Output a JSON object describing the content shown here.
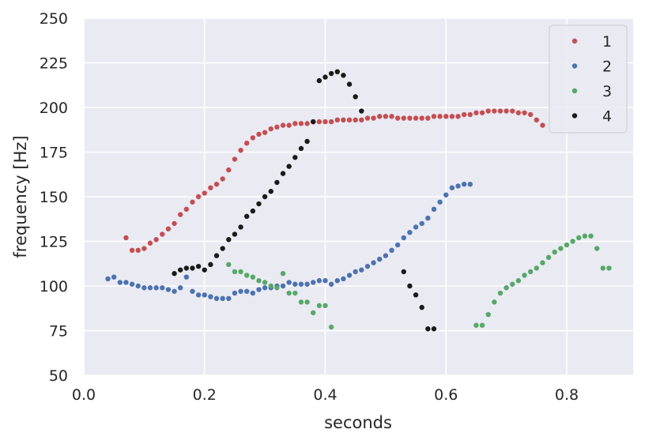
{
  "chart_data": {
    "type": "scatter",
    "xlabel": "seconds",
    "ylabel": "frequency [Hz]",
    "xlim": [
      0.0,
      0.91
    ],
    "ylim": [
      50,
      250
    ],
    "xticks": [
      "0.0",
      "0.2",
      "0.4",
      "0.6",
      "0.8"
    ],
    "yticks": [
      "50",
      "75",
      "100",
      "125",
      "150",
      "175",
      "200",
      "225",
      "250"
    ],
    "grid": true,
    "legend_position": "top-right",
    "series": [
      {
        "name": "1",
        "color": "#c44e52",
        "points": [
          [
            0.07,
            127
          ],
          [
            0.08,
            120
          ],
          [
            0.09,
            120
          ],
          [
            0.1,
            121
          ],
          [
            0.11,
            124
          ],
          [
            0.12,
            126
          ],
          [
            0.13,
            129
          ],
          [
            0.14,
            132
          ],
          [
            0.15,
            135
          ],
          [
            0.16,
            140
          ],
          [
            0.17,
            143
          ],
          [
            0.18,
            147
          ],
          [
            0.19,
            150
          ],
          [
            0.2,
            152
          ],
          [
            0.21,
            155
          ],
          [
            0.22,
            157
          ],
          [
            0.23,
            160
          ],
          [
            0.24,
            165
          ],
          [
            0.25,
            171
          ],
          [
            0.26,
            176
          ],
          [
            0.27,
            180
          ],
          [
            0.28,
            183
          ],
          [
            0.29,
            185
          ],
          [
            0.3,
            186
          ],
          [
            0.31,
            188
          ],
          [
            0.32,
            189
          ],
          [
            0.33,
            190
          ],
          [
            0.34,
            190
          ],
          [
            0.35,
            191
          ],
          [
            0.36,
            191
          ],
          [
            0.37,
            191
          ],
          [
            0.38,
            192
          ],
          [
            0.39,
            192
          ],
          [
            0.4,
            192
          ],
          [
            0.41,
            192
          ],
          [
            0.42,
            193
          ],
          [
            0.43,
            193
          ],
          [
            0.44,
            193
          ],
          [
            0.45,
            193
          ],
          [
            0.46,
            193
          ],
          [
            0.47,
            194
          ],
          [
            0.48,
            194
          ],
          [
            0.49,
            195
          ],
          [
            0.5,
            195
          ],
          [
            0.51,
            195
          ],
          [
            0.52,
            194
          ],
          [
            0.53,
            194
          ],
          [
            0.54,
            194
          ],
          [
            0.55,
            194
          ],
          [
            0.56,
            194
          ],
          [
            0.57,
            194
          ],
          [
            0.58,
            195
          ],
          [
            0.59,
            195
          ],
          [
            0.6,
            195
          ],
          [
            0.61,
            195
          ],
          [
            0.62,
            195
          ],
          [
            0.63,
            196
          ],
          [
            0.64,
            196
          ],
          [
            0.65,
            197
          ],
          [
            0.66,
            197
          ],
          [
            0.67,
            198
          ],
          [
            0.68,
            198
          ],
          [
            0.69,
            198
          ],
          [
            0.7,
            198
          ],
          [
            0.71,
            198
          ],
          [
            0.72,
            197
          ],
          [
            0.73,
            197
          ],
          [
            0.74,
            196
          ],
          [
            0.75,
            193
          ],
          [
            0.76,
            190
          ]
        ]
      },
      {
        "name": "2",
        "color": "#4c72b0",
        "points": [
          [
            0.04,
            104
          ],
          [
            0.05,
            105
          ],
          [
            0.06,
            102
          ],
          [
            0.07,
            102
          ],
          [
            0.08,
            101
          ],
          [
            0.09,
            100
          ],
          [
            0.1,
            99
          ],
          [
            0.11,
            99
          ],
          [
            0.12,
            99
          ],
          [
            0.13,
            99
          ],
          [
            0.14,
            98
          ],
          [
            0.15,
            97
          ],
          [
            0.16,
            99
          ],
          [
            0.17,
            105
          ],
          [
            0.18,
            97
          ],
          [
            0.19,
            95
          ],
          [
            0.2,
            95
          ],
          [
            0.21,
            94
          ],
          [
            0.22,
            93
          ],
          [
            0.23,
            93
          ],
          [
            0.24,
            93
          ],
          [
            0.25,
            96
          ],
          [
            0.26,
            97
          ],
          [
            0.27,
            97
          ],
          [
            0.28,
            96
          ],
          [
            0.29,
            98
          ],
          [
            0.3,
            99
          ],
          [
            0.31,
            99
          ],
          [
            0.32,
            100
          ],
          [
            0.33,
            100
          ],
          [
            0.34,
            102
          ],
          [
            0.35,
            101
          ],
          [
            0.36,
            101
          ],
          [
            0.37,
            101
          ],
          [
            0.38,
            102
          ],
          [
            0.39,
            103
          ],
          [
            0.4,
            103
          ],
          [
            0.41,
            101
          ],
          [
            0.42,
            103
          ],
          [
            0.43,
            104
          ],
          [
            0.44,
            106
          ],
          [
            0.45,
            108
          ],
          [
            0.46,
            109
          ],
          [
            0.47,
            111
          ],
          [
            0.48,
            113
          ],
          [
            0.49,
            115
          ],
          [
            0.5,
            117
          ],
          [
            0.51,
            120
          ],
          [
            0.52,
            123
          ],
          [
            0.53,
            127
          ],
          [
            0.54,
            130
          ],
          [
            0.55,
            133
          ],
          [
            0.56,
            135
          ],
          [
            0.57,
            138
          ],
          [
            0.58,
            143
          ],
          [
            0.59,
            147
          ],
          [
            0.6,
            151
          ],
          [
            0.61,
            155
          ],
          [
            0.62,
            156
          ],
          [
            0.63,
            157
          ],
          [
            0.64,
            157
          ]
        ]
      },
      {
        "name": "3",
        "color": "#55a868",
        "points": [
          [
            0.24,
            112
          ],
          [
            0.25,
            108
          ],
          [
            0.26,
            108
          ],
          [
            0.27,
            106
          ],
          [
            0.28,
            105
          ],
          [
            0.29,
            103
          ],
          [
            0.3,
            102
          ],
          [
            0.31,
            100
          ],
          [
            0.32,
            99
          ],
          [
            0.33,
            107
          ],
          [
            0.34,
            96
          ],
          [
            0.35,
            96
          ],
          [
            0.36,
            91
          ],
          [
            0.37,
            91
          ],
          [
            0.38,
            85
          ],
          [
            0.39,
            89
          ],
          [
            0.4,
            89
          ],
          [
            0.41,
            77
          ],
          [
            0.65,
            78
          ],
          [
            0.66,
            78
          ],
          [
            0.67,
            84
          ],
          [
            0.68,
            91
          ],
          [
            0.69,
            96
          ],
          [
            0.7,
            99
          ],
          [
            0.71,
            101
          ],
          [
            0.72,
            103
          ],
          [
            0.73,
            106
          ],
          [
            0.74,
            108
          ],
          [
            0.75,
            110
          ],
          [
            0.76,
            113
          ],
          [
            0.77,
            116
          ],
          [
            0.78,
            119
          ],
          [
            0.79,
            121
          ],
          [
            0.8,
            123
          ],
          [
            0.81,
            125
          ],
          [
            0.82,
            127
          ],
          [
            0.83,
            128
          ],
          [
            0.84,
            128
          ],
          [
            0.85,
            121
          ],
          [
            0.86,
            110
          ],
          [
            0.87,
            110
          ]
        ]
      },
      {
        "name": "4",
        "color": "#1a1a1a",
        "points": [
          [
            0.15,
            107
          ],
          [
            0.16,
            109
          ],
          [
            0.17,
            110
          ],
          [
            0.18,
            110
          ],
          [
            0.19,
            111
          ],
          [
            0.2,
            109
          ],
          [
            0.21,
            112
          ],
          [
            0.22,
            117
          ],
          [
            0.23,
            121
          ],
          [
            0.24,
            126
          ],
          [
            0.25,
            129
          ],
          [
            0.26,
            133
          ],
          [
            0.27,
            139
          ],
          [
            0.28,
            142
          ],
          [
            0.29,
            146
          ],
          [
            0.3,
            150
          ],
          [
            0.31,
            153
          ],
          [
            0.32,
            158
          ],
          [
            0.33,
            163
          ],
          [
            0.34,
            167
          ],
          [
            0.35,
            172
          ],
          [
            0.36,
            177
          ],
          [
            0.37,
            181
          ],
          [
            0.38,
            192
          ],
          [
            0.39,
            215
          ],
          [
            0.4,
            217
          ],
          [
            0.41,
            219
          ],
          [
            0.42,
            220
          ],
          [
            0.43,
            218
          ],
          [
            0.44,
            213
          ],
          [
            0.45,
            206
          ],
          [
            0.46,
            198
          ],
          [
            0.53,
            108
          ],
          [
            0.54,
            100
          ],
          [
            0.55,
            95
          ],
          [
            0.56,
            88
          ],
          [
            0.57,
            76
          ],
          [
            0.58,
            76
          ]
        ]
      }
    ]
  }
}
